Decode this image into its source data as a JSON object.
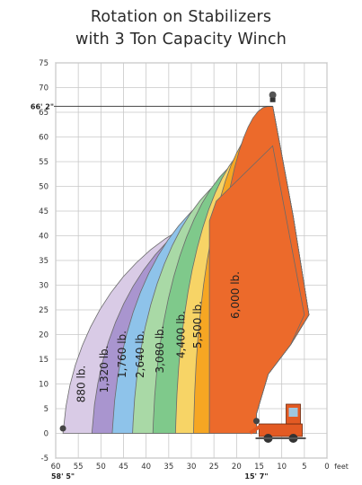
{
  "chart_data": {
    "type": "area",
    "title": "Rotation on Stabilizers",
    "subtitle": "with 3 Ton Capacity Winch",
    "x_axis": {
      "ticks": [
        "60",
        "55",
        "50",
        "45",
        "40",
        "35",
        "30",
        "25",
        "20",
        "15",
        "10",
        "5",
        "0"
      ],
      "unit_label": "feet",
      "range": [
        60,
        0
      ],
      "reversed": true,
      "markers": [
        "58' 5\"",
        "15' 7\""
      ]
    },
    "y_axis": {
      "ticks": [
        "75",
        "70",
        "65",
        "60",
        "55",
        "50",
        "45",
        "40",
        "35",
        "30",
        "25",
        "20",
        "15",
        "10",
        "5",
        "0",
        "-5"
      ],
      "range": [
        -5,
        75
      ],
      "markers": [
        "66' 2\""
      ]
    },
    "grid": true,
    "zones": [
      {
        "label": "880 lb.",
        "color": "#d9cbe6",
        "outer_x_at_base": 58.4
      },
      {
        "label": "1,320 lb.",
        "color": "#a995cf",
        "outer_x_at_base": 52
      },
      {
        "label": "1,760 lb.",
        "color": "#8ec3ea",
        "outer_x_at_base": 47.5
      },
      {
        "label": "2,640 lb.",
        "color": "#a9d9a6",
        "outer_x_at_base": 43
      },
      {
        "label": "3,080 lb.",
        "color": "#7fc98b",
        "outer_x_at_base": 38.5
      },
      {
        "label": "4,400 lb.",
        "color": "#f7d466",
        "outer_x_at_base": 33.5
      },
      {
        "label": "5,500 lb.",
        "color": "#f6a623",
        "outer_x_at_base": 29.5
      },
      {
        "label": "6,000 lb.",
        "color": "#ec6a2b",
        "outer_x_at_base": 26
      }
    ],
    "envelope": {
      "max_height_ft": 66.2,
      "max_reach_ft": 58.4,
      "cutout_x_ft": 15.6
    }
  },
  "text": {
    "title": "Rotation on Stabilizers",
    "subtitle": "with 3 Ton Capacity Winch"
  }
}
